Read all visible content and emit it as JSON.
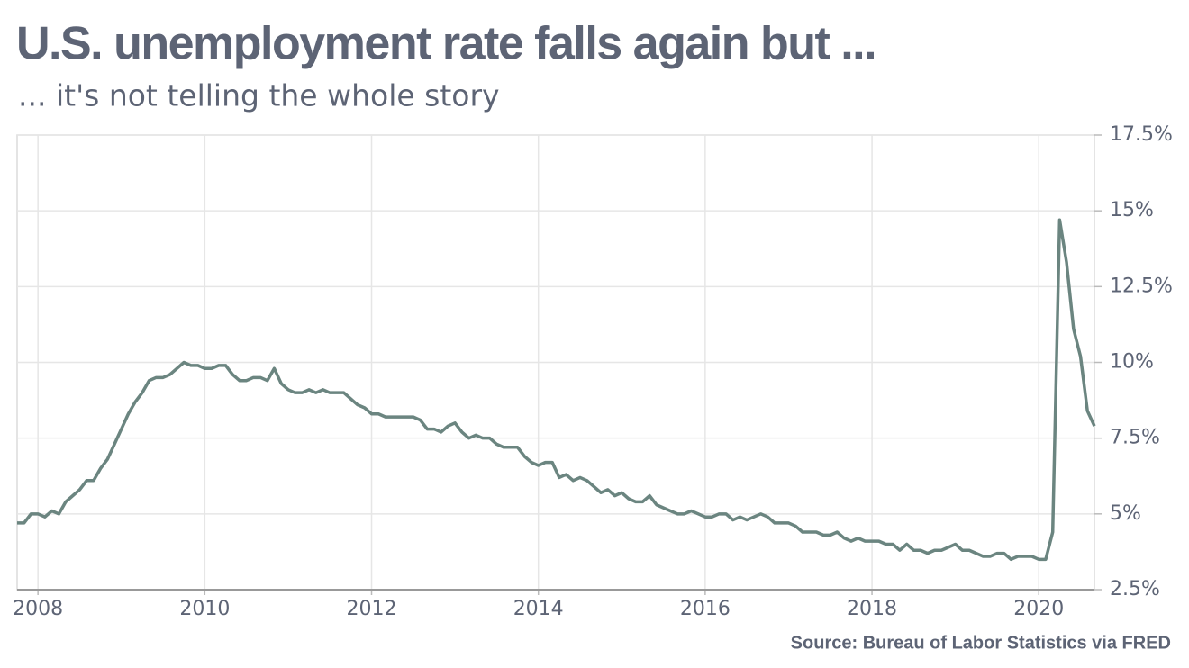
{
  "chart_data": {
    "type": "line",
    "title": "U.S. unemployment rate falls again but ...",
    "subtitle": "... it's not telling the whole story",
    "source": "Source: Bureau of Labor Statistics via FRED",
    "color": "#6b8580",
    "grid": true,
    "x": [
      2007.75,
      2007.833,
      2007.917,
      2008,
      2008.083,
      2008.167,
      2008.25,
      2008.333,
      2008.417,
      2008.5,
      2008.583,
      2008.667,
      2008.75,
      2008.833,
      2008.917,
      2009,
      2009.083,
      2009.167,
      2009.25,
      2009.333,
      2009.417,
      2009.5,
      2009.583,
      2009.667,
      2009.75,
      2009.833,
      2009.917,
      2010,
      2010.083,
      2010.167,
      2010.25,
      2010.333,
      2010.417,
      2010.5,
      2010.583,
      2010.667,
      2010.75,
      2010.833,
      2010.917,
      2011,
      2011.083,
      2011.167,
      2011.25,
      2011.333,
      2011.417,
      2011.5,
      2011.583,
      2011.667,
      2011.75,
      2011.833,
      2011.917,
      2012,
      2012.083,
      2012.167,
      2012.25,
      2012.333,
      2012.417,
      2012.5,
      2012.583,
      2012.667,
      2012.75,
      2012.833,
      2012.917,
      2013,
      2013.083,
      2013.167,
      2013.25,
      2013.333,
      2013.417,
      2013.5,
      2013.583,
      2013.667,
      2013.75,
      2013.833,
      2013.917,
      2014,
      2014.083,
      2014.167,
      2014.25,
      2014.333,
      2014.417,
      2014.5,
      2014.583,
      2014.667,
      2014.75,
      2014.833,
      2014.917,
      2015,
      2015.083,
      2015.167,
      2015.25,
      2015.333,
      2015.417,
      2015.5,
      2015.583,
      2015.667,
      2015.75,
      2015.833,
      2015.917,
      2016,
      2016.083,
      2016.167,
      2016.25,
      2016.333,
      2016.417,
      2016.5,
      2016.583,
      2016.667,
      2016.75,
      2016.833,
      2016.917,
      2017,
      2017.083,
      2017.167,
      2017.25,
      2017.333,
      2017.417,
      2017.5,
      2017.583,
      2017.667,
      2017.75,
      2017.833,
      2017.917,
      2018,
      2018.083,
      2018.167,
      2018.25,
      2018.333,
      2018.417,
      2018.5,
      2018.583,
      2018.667,
      2018.75,
      2018.833,
      2018.917,
      2019,
      2019.083,
      2019.167,
      2019.25,
      2019.333,
      2019.417,
      2019.5,
      2019.583,
      2019.667,
      2019.75,
      2019.833,
      2019.917,
      2020,
      2020.083,
      2020.167,
      2020.25,
      2020.333,
      2020.417,
      2020.5,
      2020.583,
      2020.667
    ],
    "values": [
      4.7,
      4.7,
      5.0,
      5.0,
      4.9,
      5.1,
      5.0,
      5.4,
      5.6,
      5.8,
      6.1,
      6.1,
      6.5,
      6.8,
      7.3,
      7.8,
      8.3,
      8.7,
      9.0,
      9.4,
      9.5,
      9.5,
      9.6,
      9.8,
      10.0,
      9.9,
      9.9,
      9.8,
      9.8,
      9.9,
      9.9,
      9.6,
      9.4,
      9.4,
      9.5,
      9.5,
      9.4,
      9.8,
      9.3,
      9.1,
      9.0,
      9.0,
      9.1,
      9.0,
      9.1,
      9.0,
      9.0,
      9.0,
      8.8,
      8.6,
      8.5,
      8.3,
      8.3,
      8.2,
      8.2,
      8.2,
      8.2,
      8.2,
      8.1,
      7.8,
      7.8,
      7.7,
      7.9,
      8.0,
      7.7,
      7.5,
      7.6,
      7.5,
      7.5,
      7.3,
      7.2,
      7.2,
      7.2,
      6.9,
      6.7,
      6.6,
      6.7,
      6.7,
      6.2,
      6.3,
      6.1,
      6.2,
      6.1,
      5.9,
      5.7,
      5.8,
      5.6,
      5.7,
      5.5,
      5.4,
      5.4,
      5.6,
      5.3,
      5.2,
      5.1,
      5.0,
      5.0,
      5.1,
      5.0,
      4.9,
      4.9,
      5.0,
      5.0,
      4.8,
      4.9,
      4.8,
      4.9,
      5.0,
      4.9,
      4.7,
      4.7,
      4.7,
      4.6,
      4.4,
      4.4,
      4.4,
      4.3,
      4.3,
      4.4,
      4.2,
      4.1,
      4.2,
      4.1,
      4.1,
      4.1,
      4.0,
      4.0,
      3.8,
      4.0,
      3.8,
      3.8,
      3.7,
      3.8,
      3.8,
      3.9,
      4.0,
      3.8,
      3.8,
      3.7,
      3.6,
      3.6,
      3.7,
      3.7,
      3.5,
      3.6,
      3.6,
      3.6,
      3.5,
      3.5,
      4.4,
      14.7,
      13.3,
      11.1,
      10.2,
      8.4,
      7.9
    ],
    "xlim": [
      2007.75,
      2020.667
    ],
    "xticks": [
      2008,
      2010,
      2012,
      2014,
      2016,
      2018,
      2020
    ],
    "ylim": [
      2.5,
      17.5
    ],
    "yticks": [
      {
        "value": 2.5,
        "label": "2.5%"
      },
      {
        "value": 5,
        "label": "5%"
      },
      {
        "value": 7.5,
        "label": "7.5%"
      },
      {
        "value": 10,
        "label": "10%"
      },
      {
        "value": 12.5,
        "label": "12.5%"
      },
      {
        "value": 15,
        "label": "15%"
      },
      {
        "value": 17.5,
        "label": "17.5%"
      }
    ]
  }
}
